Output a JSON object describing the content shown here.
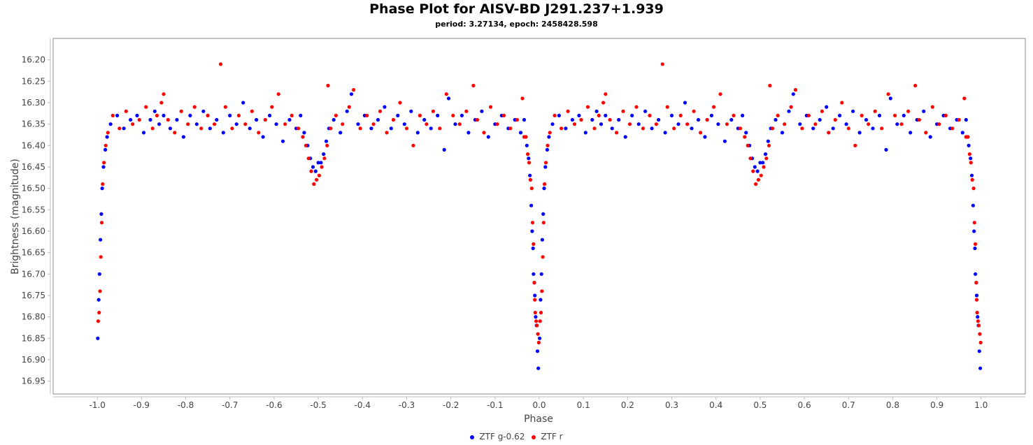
{
  "chart_data": {
    "type": "scatter",
    "title": "Phase Plot for AISV-BD J291.237+1.939",
    "subtitle": "period: 3.27134, epoch: 2458428.598",
    "xlabel": "Phase",
    "ylabel": "Brightness (magnitude)",
    "xlim": [
      -1.1,
      1.1
    ],
    "ylim": [
      16.15,
      16.98
    ],
    "y_inverted": true,
    "grid": false,
    "legend_position": "bottom",
    "x_ticks": [
      "-1.0",
      "-0.9",
      "-0.8",
      "-0.7",
      "-0.6",
      "-0.5",
      "-0.4",
      "-0.3",
      "-0.2",
      "-0.1",
      "0.0",
      "0.1",
      "0.2",
      "0.3",
      "0.4",
      "0.5",
      "0.6",
      "0.7",
      "0.8",
      "0.9",
      "1.0"
    ],
    "y_ticks": [
      "16.20",
      "16.25",
      "16.30",
      "16.35",
      "16.40",
      "16.45",
      "16.50",
      "16.55",
      "16.60",
      "16.65",
      "16.70",
      "16.75",
      "16.80",
      "16.85",
      "16.90",
      "16.95"
    ],
    "phase_repeat": "each point is plotted at phase and phase-1",
    "series": [
      {
        "name": "ZTF g-0.62",
        "color": "#0000ff",
        "points": [
          [
            0.972,
            16.4
          ],
          [
            0.976,
            16.43
          ],
          [
            0.979,
            16.47
          ],
          [
            0.982,
            16.54
          ],
          [
            0.984,
            16.6
          ],
          [
            0.986,
            16.64
          ],
          [
            0.987,
            16.7
          ],
          [
            0.989,
            16.72
          ],
          [
            0.99,
            16.75
          ],
          [
            0.992,
            16.8
          ],
          [
            0.994,
            16.82
          ],
          [
            0.996,
            16.88
          ],
          [
            0.998,
            16.92
          ],
          [
            0.001,
            16.85
          ],
          [
            0.003,
            16.76
          ],
          [
            0.005,
            16.7
          ],
          [
            0.007,
            16.62
          ],
          [
            0.009,
            16.56
          ],
          [
            0.011,
            16.5
          ],
          [
            0.014,
            16.45
          ],
          [
            0.018,
            16.41
          ],
          [
            0.022,
            16.38
          ],
          [
            0.03,
            16.35
          ],
          [
            0.045,
            16.33
          ],
          [
            0.06,
            16.36
          ],
          [
            0.075,
            16.34
          ],
          [
            0.09,
            16.33
          ],
          [
            0.105,
            16.37
          ],
          [
            0.12,
            16.34
          ],
          [
            0.13,
            16.32
          ],
          [
            0.14,
            16.35
          ],
          [
            0.15,
            16.33
          ],
          [
            0.165,
            16.36
          ],
          [
            0.18,
            16.34
          ],
          [
            0.195,
            16.38
          ],
          [
            0.21,
            16.33
          ],
          [
            0.225,
            16.35
          ],
          [
            0.24,
            16.32
          ],
          [
            0.255,
            16.36
          ],
          [
            0.27,
            16.34
          ],
          [
            0.285,
            16.37
          ],
          [
            0.3,
            16.33
          ],
          [
            0.315,
            16.35
          ],
          [
            0.33,
            16.3
          ],
          [
            0.345,
            16.36
          ],
          [
            0.36,
            16.34
          ],
          [
            0.375,
            16.38
          ],
          [
            0.39,
            16.33
          ],
          [
            0.405,
            16.35
          ],
          [
            0.42,
            16.39
          ],
          [
            0.435,
            16.34
          ],
          [
            0.45,
            16.36
          ],
          [
            0.46,
            16.33
          ],
          [
            0.468,
            16.37
          ],
          [
            0.476,
            16.4
          ],
          [
            0.482,
            16.43
          ],
          [
            0.488,
            16.45
          ],
          [
            0.494,
            16.46
          ],
          [
            0.5,
            16.44
          ],
          [
            0.506,
            16.44
          ],
          [
            0.512,
            16.42
          ],
          [
            0.518,
            16.39
          ],
          [
            0.524,
            16.36
          ],
          [
            0.535,
            16.34
          ],
          [
            0.55,
            16.37
          ],
          [
            0.565,
            16.32
          ],
          [
            0.575,
            16.28
          ],
          [
            0.59,
            16.35
          ],
          [
            0.605,
            16.33
          ],
          [
            0.62,
            16.36
          ],
          [
            0.635,
            16.34
          ],
          [
            0.65,
            16.31
          ],
          [
            0.665,
            16.36
          ],
          [
            0.68,
            16.33
          ],
          [
            0.695,
            16.35
          ],
          [
            0.71,
            16.32
          ],
          [
            0.725,
            16.37
          ],
          [
            0.74,
            16.34
          ],
          [
            0.755,
            16.36
          ],
          [
            0.77,
            16.33
          ],
          [
            0.785,
            16.41
          ],
          [
            0.795,
            16.29
          ],
          [
            0.81,
            16.35
          ],
          [
            0.825,
            16.33
          ],
          [
            0.84,
            16.37
          ],
          [
            0.855,
            16.34
          ],
          [
            0.87,
            16.32
          ],
          [
            0.885,
            16.38
          ],
          [
            0.9,
            16.35
          ],
          [
            0.915,
            16.33
          ],
          [
            0.93,
            16.36
          ],
          [
            0.945,
            16.34
          ],
          [
            0.958,
            16.37
          ],
          [
            0.966,
            16.34
          ]
        ]
      },
      {
        "name": "ZTF r",
        "color": "#ff0000",
        "points": [
          [
            0.97,
            16.38
          ],
          [
            0.974,
            16.42
          ],
          [
            0.977,
            16.44
          ],
          [
            0.98,
            16.48
          ],
          [
            0.983,
            16.5
          ],
          [
            0.985,
            16.58
          ],
          [
            0.987,
            16.63
          ],
          [
            0.989,
            16.72
          ],
          [
            0.99,
            16.76
          ],
          [
            0.991,
            16.79
          ],
          [
            0.993,
            16.81
          ],
          [
            0.995,
            16.82
          ],
          [
            0.997,
            16.84
          ],
          [
            0.999,
            16.86
          ],
          [
            0.002,
            16.81
          ],
          [
            0.004,
            16.79
          ],
          [
            0.006,
            16.74
          ],
          [
            0.008,
            16.66
          ],
          [
            0.01,
            16.58
          ],
          [
            0.012,
            16.49
          ],
          [
            0.015,
            16.44
          ],
          [
            0.019,
            16.4
          ],
          [
            0.024,
            16.37
          ],
          [
            0.035,
            16.33
          ],
          [
            0.05,
            16.36
          ],
          [
            0.065,
            16.32
          ],
          [
            0.08,
            16.35
          ],
          [
            0.095,
            16.34
          ],
          [
            0.11,
            16.31
          ],
          [
            0.125,
            16.36
          ],
          [
            0.135,
            16.33
          ],
          [
            0.145,
            16.3
          ],
          [
            0.15,
            16.28
          ],
          [
            0.16,
            16.34
          ],
          [
            0.175,
            16.37
          ],
          [
            0.19,
            16.32
          ],
          [
            0.205,
            16.35
          ],
          [
            0.22,
            16.31
          ],
          [
            0.235,
            16.36
          ],
          [
            0.25,
            16.33
          ],
          [
            0.265,
            16.35
          ],
          [
            0.279,
            16.21
          ],
          [
            0.29,
            16.31
          ],
          [
            0.305,
            16.36
          ],
          [
            0.32,
            16.33
          ],
          [
            0.335,
            16.35
          ],
          [
            0.35,
            16.32
          ],
          [
            0.365,
            16.37
          ],
          [
            0.38,
            16.34
          ],
          [
            0.395,
            16.31
          ],
          [
            0.41,
            16.28
          ],
          [
            0.425,
            16.35
          ],
          [
            0.44,
            16.33
          ],
          [
            0.455,
            16.36
          ],
          [
            0.465,
            16.38
          ],
          [
            0.472,
            16.4
          ],
          [
            0.478,
            16.43
          ],
          [
            0.484,
            16.46
          ],
          [
            0.49,
            16.49
          ],
          [
            0.496,
            16.48
          ],
          [
            0.502,
            16.47
          ],
          [
            0.508,
            16.45
          ],
          [
            0.514,
            16.43
          ],
          [
            0.52,
            16.4
          ],
          [
            0.522,
            16.26
          ],
          [
            0.528,
            16.36
          ],
          [
            0.54,
            16.33
          ],
          [
            0.555,
            16.35
          ],
          [
            0.57,
            16.31
          ],
          [
            0.58,
            16.27
          ],
          [
            0.595,
            16.36
          ],
          [
            0.61,
            16.33
          ],
          [
            0.625,
            16.35
          ],
          [
            0.64,
            16.32
          ],
          [
            0.655,
            16.37
          ],
          [
            0.67,
            16.34
          ],
          [
            0.685,
            16.3
          ],
          [
            0.7,
            16.36
          ],
          [
            0.715,
            16.4
          ],
          [
            0.73,
            16.33
          ],
          [
            0.745,
            16.35
          ],
          [
            0.76,
            16.32
          ],
          [
            0.775,
            16.36
          ],
          [
            0.79,
            16.28
          ],
          [
            0.805,
            16.33
          ],
          [
            0.82,
            16.35
          ],
          [
            0.835,
            16.32
          ],
          [
            0.851,
            16.26
          ],
          [
            0.86,
            16.34
          ],
          [
            0.875,
            16.37
          ],
          [
            0.89,
            16.31
          ],
          [
            0.905,
            16.35
          ],
          [
            0.92,
            16.33
          ],
          [
            0.935,
            16.36
          ],
          [
            0.95,
            16.34
          ],
          [
            0.962,
            16.29
          ],
          [
            0.966,
            16.38
          ]
        ]
      }
    ]
  },
  "legend": {
    "items": [
      "ZTF g-0.62",
      "ZTF r"
    ]
  }
}
